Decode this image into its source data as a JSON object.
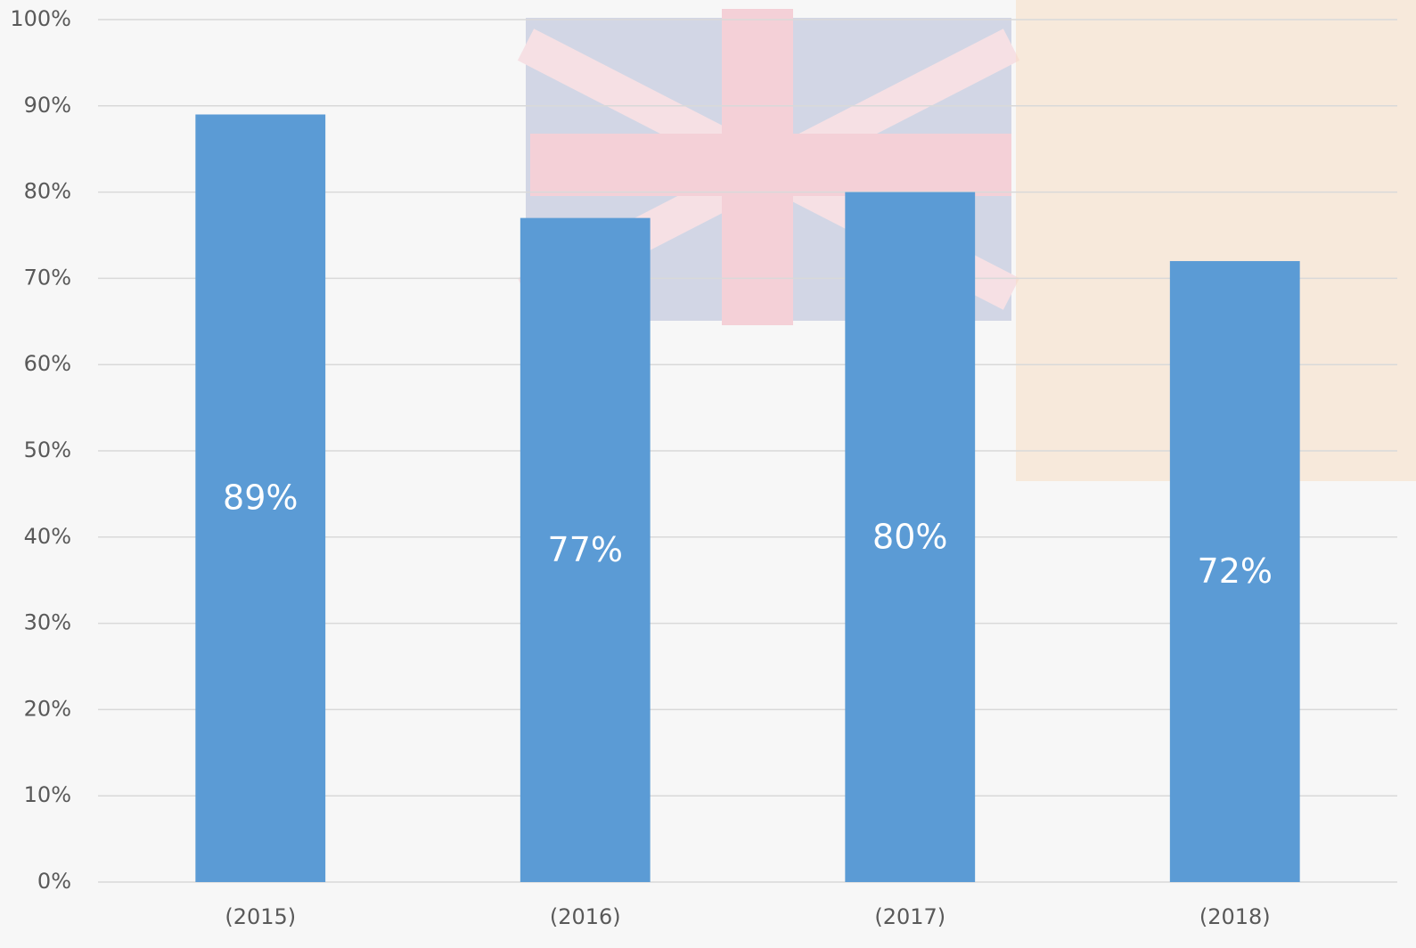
{
  "chart_data": {
    "type": "bar",
    "categories": [
      "(2015)",
      "(2016)",
      "(2017)",
      "(2018)"
    ],
    "values": [
      89,
      77,
      80,
      72
    ],
    "value_labels": [
      "89%",
      "77%",
      "80%",
      "72%"
    ],
    "color": "#5b9bd5",
    "ylim": [
      0,
      100
    ],
    "yticks": [
      {
        "value": 0,
        "label": "0%"
      },
      {
        "value": 10,
        "label": "10%"
      },
      {
        "value": 20,
        "label": "20%"
      },
      {
        "value": 30,
        "label": "30%"
      },
      {
        "value": 40,
        "label": "40%"
      },
      {
        "value": 50,
        "label": "50%"
      },
      {
        "value": 60,
        "label": "60%"
      },
      {
        "value": 70,
        "label": "70%"
      },
      {
        "value": 80,
        "label": "80%"
      },
      {
        "value": 90,
        "label": "90%"
      },
      {
        "value": 100,
        "label": "100%"
      }
    ],
    "grid": true
  }
}
